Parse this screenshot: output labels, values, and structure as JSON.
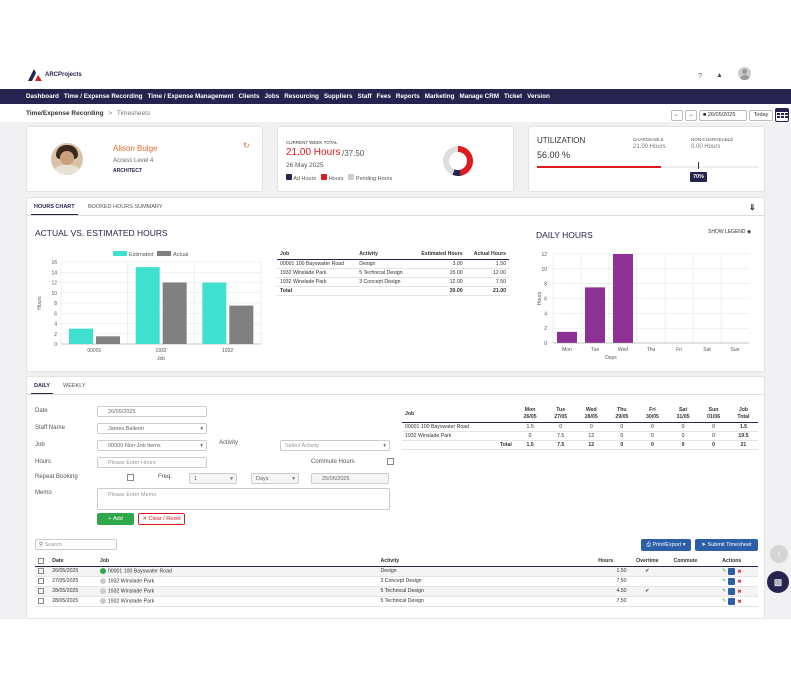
{
  "brand": "ARCProjects",
  "nav": [
    "Dashboard",
    "Time / Expense Recording",
    "Time / Expense Management",
    "Clients",
    "Jobs",
    "Resourcing",
    "Suppliers",
    "Staff",
    "Fees",
    "Reports",
    "Marketing",
    "Manage CRM",
    "Ticket",
    "Version"
  ],
  "breadcrumb": {
    "root": "Time/Expense Recording",
    "sep": ">",
    "current": "Timesheets"
  },
  "date_picker": {
    "value": "26/05/2025",
    "today": "Today"
  },
  "profile": {
    "name": "Alison Bulge",
    "access": "Access Level  4",
    "role": "ARCHITECT"
  },
  "week": {
    "label": "CURRENT WEEK TOTAL",
    "hours": "21.00 Hours",
    "target": "/37.50",
    "date": "26 May 2025",
    "legend": [
      "Ad Hours",
      "Hours",
      "Pending Hours"
    ]
  },
  "util": {
    "title": "UTILIZATION",
    "value": "56.00 %",
    "chargeable_label": "CHARGEABLE",
    "chargeable": "21.00 Hours",
    "nonchargeable_label": "NON-CHARGEABLE",
    "nonchargeable": "0.00 Hours",
    "badge": "70%"
  },
  "tabs": {
    "hours_chart": "HOURS CHART",
    "booked": "BOOKED HOURS SUMMARY"
  },
  "actual_chart": {
    "title": "ACTUAL VS. ESTIMATED HOURS",
    "legend_est": "Estimated",
    "legend_act": "Actual",
    "ylabel": "Hours",
    "xlabel": "Job",
    "yticks": [
      "0",
      "2",
      "4",
      "6",
      "8",
      "10",
      "12",
      "14",
      "16"
    ]
  },
  "chart_data": [
    {
      "type": "bar",
      "title": "ACTUAL VS. ESTIMATED HOURS",
      "categories": [
        "00001",
        "1932",
        "1932"
      ],
      "series": [
        {
          "name": "Estimated",
          "values": [
            3,
            15,
            12
          ]
        },
        {
          "name": "Actual",
          "values": [
            1.5,
            12,
            7.5
          ]
        }
      ],
      "xlabel": "Job",
      "ylabel": "Hours",
      "ylim": [
        0,
        16
      ]
    },
    {
      "type": "bar",
      "title": "DAILY HOURS",
      "categories": [
        "Mon",
        "Tue",
        "Wed",
        "Thu",
        "Fri",
        "Sat",
        "Sun"
      ],
      "values": [
        1.5,
        7.5,
        12,
        0,
        0,
        0,
        0
      ],
      "xlabel": "Days",
      "ylabel": "Hours",
      "ylim": [
        0,
        12
      ]
    }
  ],
  "est_table": {
    "headers": [
      "Job",
      "Activity",
      "Estimated Hours",
      "Actual Hours"
    ],
    "rows": [
      [
        "00001 100 Bayswater Road",
        "Design",
        "3.00",
        "1.50"
      ],
      [
        "1932 Winslade Park",
        "5 Technical Design",
        "15.00",
        "12.00"
      ],
      [
        "1932 Winslade Park",
        "3 Concept Design",
        "12.00",
        "7.50"
      ]
    ],
    "total": [
      "Total",
      "",
      "30.00",
      "21.00"
    ]
  },
  "daily_chart": {
    "title": "DAILY HOURS",
    "show_legend": "SHOW LEGEND",
    "ylabel": "Hours",
    "xlabel": "Days",
    "yticks": [
      "0",
      "2",
      "4",
      "6",
      "8",
      "10",
      "12"
    ]
  },
  "form": {
    "tabs": [
      "DAILY",
      "WEEKLY"
    ],
    "date_label": "Date",
    "date": "26/05/2025",
    "staff_label": "Staff Name",
    "staff": "James Balleon",
    "job_label": "Job",
    "job": "00000 Non-Job Items",
    "activity_label": "Activity",
    "activity_ph": "Select Activity",
    "hours_label": "Hours",
    "hours_ph": "Please Enter Hours",
    "commute_label": "Commute Hours",
    "repeat_label": "Repeat Booking",
    "freq_label": "Freq.",
    "freq": "1",
    "freq_unit": "Days",
    "repeat_date": "25/06/2025",
    "memo_label": "Memo",
    "memo_ph": "Please Enter Memo",
    "add": "Add",
    "clear": "Clear / Reset"
  },
  "week_table": {
    "headers": [
      [
        "Job",
        ""
      ],
      [
        "Mon",
        "26/05"
      ],
      [
        "Tue",
        "27/05"
      ],
      [
        "Wed",
        "28/05"
      ],
      [
        "Thu",
        "29/05"
      ],
      [
        "Fri",
        "30/05"
      ],
      [
        "Sat",
        "31/05"
      ],
      [
        "Sun",
        "01/06"
      ],
      [
        "Job",
        "Total"
      ]
    ],
    "rows": [
      [
        "00001 100 Bayswater Road",
        "1.5",
        "0",
        "0",
        "0",
        "0",
        "0",
        "0",
        "1.5"
      ],
      [
        "1932 Winslade Park",
        "0",
        "7.5",
        "12",
        "0",
        "0",
        "0",
        "0",
        "19.5"
      ]
    ],
    "total": [
      "Total",
      "1.5",
      "7.5",
      "12",
      "0",
      "0",
      "0",
      "0",
      "21"
    ]
  },
  "list": {
    "search_ph": "Search",
    "print": "Print/Export",
    "submit": "Submit Timesheet",
    "headers": [
      "Date",
      "Job",
      "Activity",
      "Hours",
      "Overtime",
      "Commute",
      "Actions"
    ],
    "rows": [
      [
        "26/05/2025",
        "00001 100 Bayswater Road",
        "Design",
        "1.50",
        "✔",
        ""
      ],
      [
        "27/05/2025",
        "1932 Winslade Park",
        "3 Concept Design",
        "7.50",
        "",
        ""
      ],
      [
        "28/05/2025",
        "1932 Winslade Park",
        "5 Technical Design",
        "4.50",
        "✔",
        ""
      ],
      [
        "28/05/2025",
        "1932 Winslade Park",
        "5 Technical Design",
        "7.50",
        "",
        ""
      ]
    ]
  },
  "colors": {
    "navy": "#26244f",
    "red": "#e0191f",
    "teal": "#40e0d0",
    "purple": "#8e3196",
    "blue": "#2d5fa8",
    "green": "#2ea84a"
  }
}
